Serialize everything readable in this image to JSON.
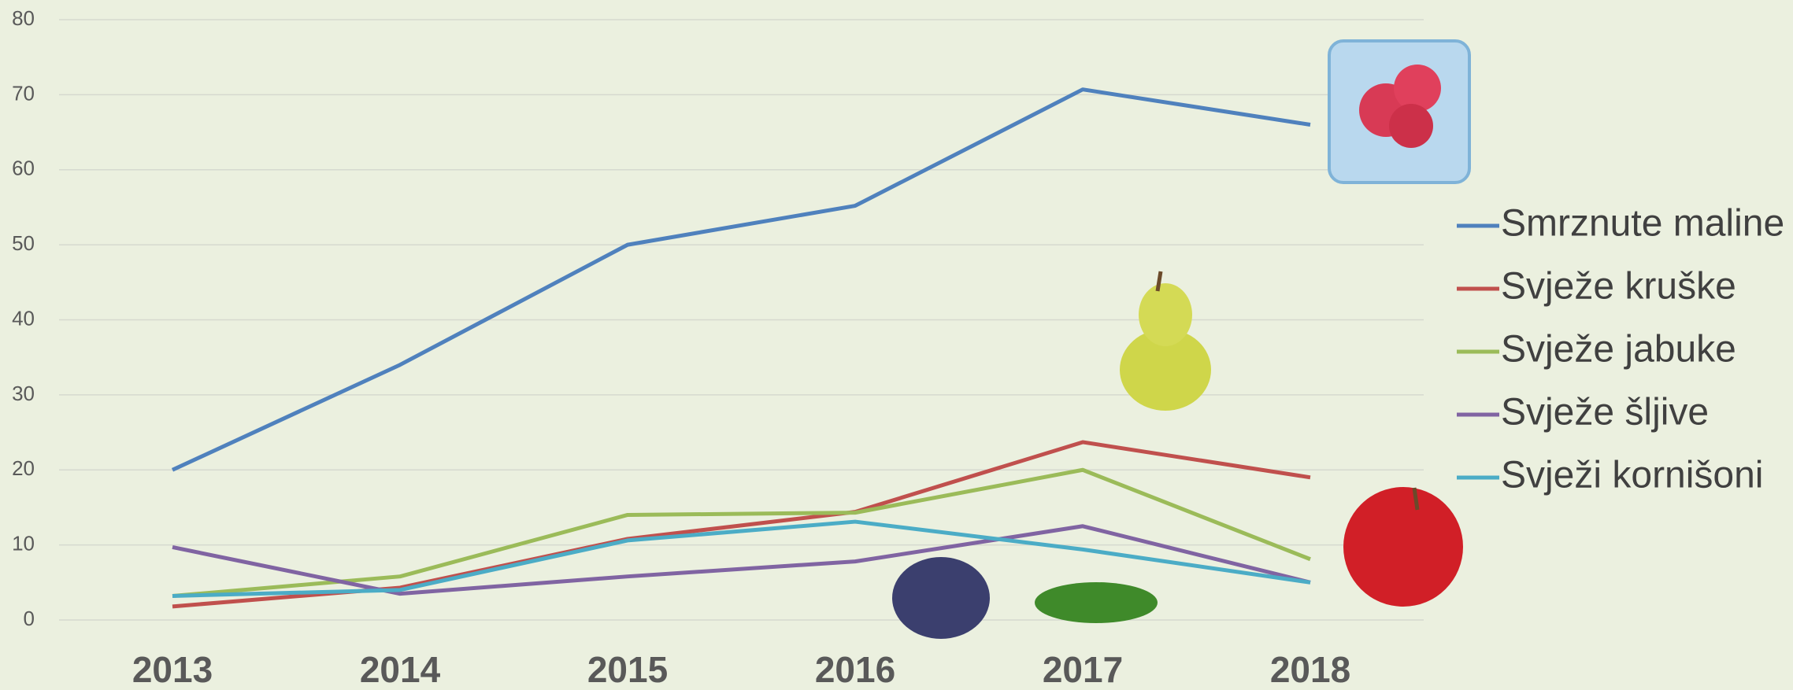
{
  "chart_data": {
    "type": "line",
    "categories": [
      "2013",
      "2014",
      "2015",
      "2016",
      "2017",
      "2018"
    ],
    "series": [
      {
        "name": "Smrznute maline",
        "color": "#4f81bd",
        "values": [
          20,
          34,
          50,
          55.2,
          70.7,
          66
        ]
      },
      {
        "name": "Svježe kruške",
        "color": "#c0504d",
        "values": [
          1.8,
          4.3,
          10.8,
          14.4,
          23.7,
          19
        ]
      },
      {
        "name": "Svježe jabuke",
        "color": "#9bbb59",
        "values": [
          3.2,
          5.8,
          14,
          14.3,
          20,
          8.1
        ]
      },
      {
        "name": "Svježe šljive",
        "color": "#8064a2",
        "values": [
          9.7,
          3.5,
          5.8,
          7.8,
          12.5,
          5
        ]
      },
      {
        "name": "Svježi kornišoni",
        "color": "#4bacc6",
        "values": [
          3.2,
          4,
          10.6,
          13.1,
          9.4,
          5
        ]
      }
    ],
    "ylim": [
      0,
      80
    ],
    "yticks": [
      0,
      10,
      20,
      30,
      40,
      50,
      60,
      70,
      80
    ],
    "grid": true,
    "legend": "right"
  }
}
